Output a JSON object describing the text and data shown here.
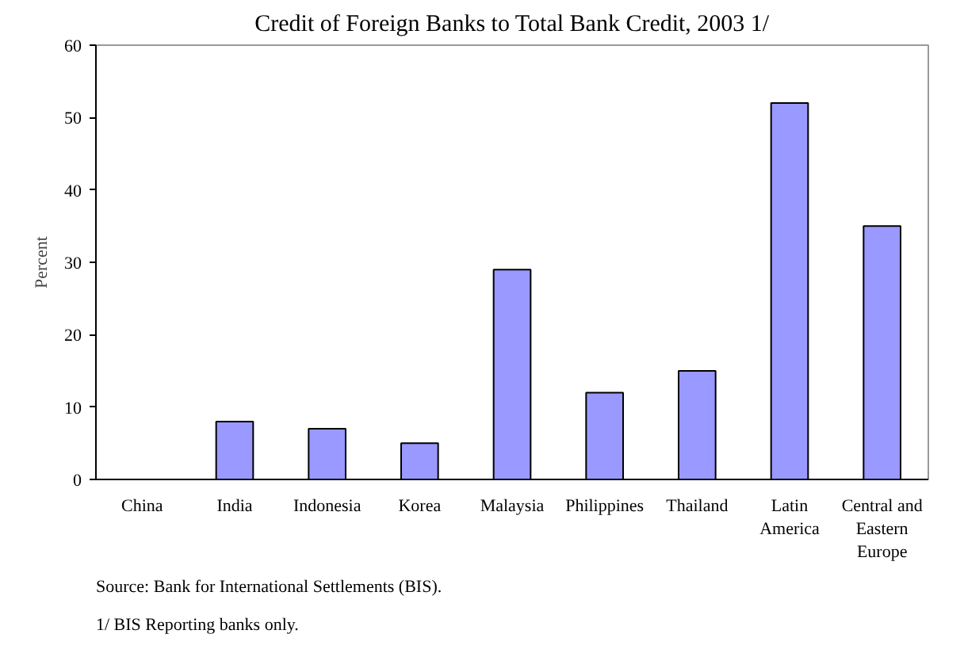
{
  "chart_data": {
    "type": "bar",
    "title": "Credit of Foreign Banks to Total Bank Credit, 2003 1/",
    "ylabel": "Percent",
    "categories": [
      "China",
      "India",
      "Indonesia",
      "Korea",
      "Malaysia",
      "Philippines",
      "Thailand",
      "Latin America",
      "Central and Eastern Europe"
    ],
    "values": [
      0,
      8,
      7,
      5,
      29,
      12,
      15,
      52,
      35
    ],
    "color": "#9999ff",
    "ylim": [
      0,
      60
    ],
    "yticks": [
      0,
      10,
      20,
      30,
      40,
      50,
      60
    ],
    "grid": false,
    "annotations": [
      "Source: Bank for International Settlements (BIS).",
      "1/  BIS Reporting banks only."
    ]
  }
}
